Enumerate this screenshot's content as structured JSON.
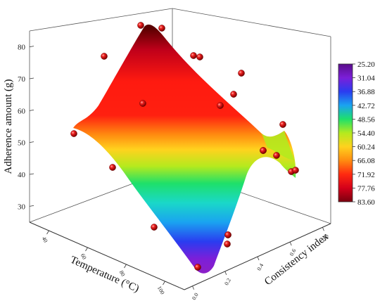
{
  "chart_data": {
    "type": "surface3d",
    "title": "",
    "xlabel": "Temperature (°C)",
    "ylabel": "Consistency index",
    "zlabel": "Adherence amount (g)",
    "x_ticks": [
      "40",
      "60",
      "80",
      "100"
    ],
    "y_ticks": [
      "0.0",
      "0.2",
      "0.4",
      "0.6",
      "0.8"
    ],
    "z_ticks": [
      "30",
      "40",
      "50",
      "60",
      "70",
      "80"
    ],
    "colorbar": {
      "labels": [
        "25.20",
        "31.04",
        "36.88",
        "42.72",
        "48.56",
        "54.40",
        "60.24",
        "66.08",
        "71.92",
        "77.76",
        "83.60"
      ],
      "colors": [
        "#5a0d8a",
        "#7b1fd9",
        "#2a3cf0",
        "#1aa3f0",
        "#1ee06a",
        "#b4ea1e",
        "#ffd21e",
        "#ff8c10",
        "#ff2a10",
        "#d4001a",
        "#7a000f"
      ]
    },
    "surface_corners": [
      {
        "T": 40,
        "C": 0.0,
        "z": 58
      },
      {
        "T": 40,
        "C": 0.8,
        "z": 83.6
      },
      {
        "T": 100,
        "C": 0.8,
        "z": 49
      },
      {
        "T": 100,
        "C": 0.0,
        "z": 25.2
      }
    ],
    "points": [
      {
        "T": 40,
        "C": 0.0,
        "z": 57
      },
      {
        "T": 40,
        "C": 0.2,
        "z": 78
      },
      {
        "T": 40,
        "C": 0.6,
        "z": 87
      },
      {
        "T": 40,
        "C": 0.8,
        "z": 85
      },
      {
        "T": 60,
        "C": 0.0,
        "z": 45
      },
      {
        "T": 60,
        "C": 0.4,
        "z": 65
      },
      {
        "T": 60,
        "C": 0.8,
        "z": 75
      },
      {
        "T": 60,
        "C": 0.8,
        "z": 77
      },
      {
        "T": 80,
        "C": 0.0,
        "z": 29
      },
      {
        "T": 80,
        "C": 0.4,
        "z": 60
      },
      {
        "T": 80,
        "C": 0.6,
        "z": 66
      },
      {
        "T": 80,
        "C": 0.8,
        "z": 72
      },
      {
        "T": 100,
        "C": 0.0,
        "z": 26
      },
      {
        "T": 100,
        "C": 0.4,
        "z": 33
      },
      {
        "T": 100,
        "C": 0.6,
        "z": 44
      },
      {
        "T": 100,
        "C": 0.6,
        "z": 46
      },
      {
        "T": 100,
        "C": 0.8,
        "z": 47
      },
      {
        "T": 100,
        "C": 0.8,
        "z": 55
      },
      {
        "T": 80,
        "C": 0.8,
        "z": 50
      },
      {
        "T": 100,
        "C": 0.8,
        "z": 44
      },
      {
        "T": 100,
        "C": 0.8,
        "z": 45
      },
      {
        "T": 100,
        "C": 0.4,
        "z": 31
      }
    ]
  }
}
